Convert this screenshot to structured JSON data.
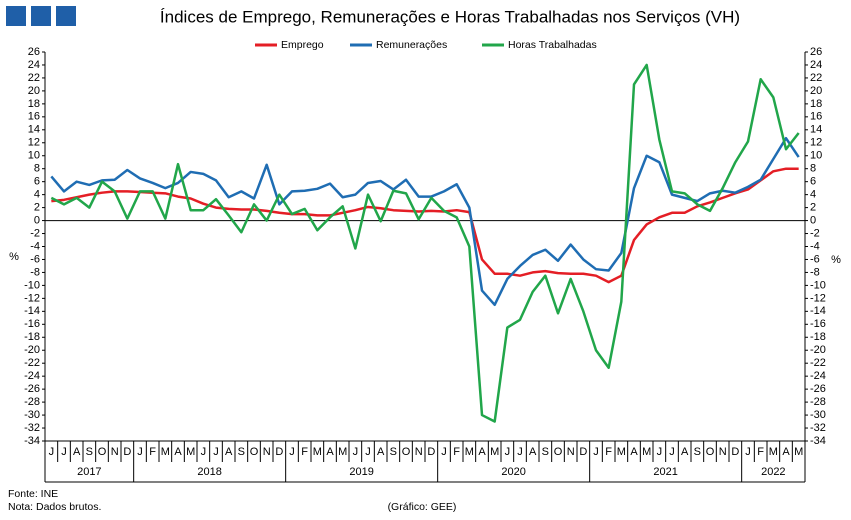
{
  "chart_data": {
    "type": "line",
    "title": "Índices de Emprego, Remunerações e Horas Trabalhadas nos Serviços (VH)",
    "ylabel": "%",
    "categories": [
      "J",
      "J",
      "A",
      "S",
      "O",
      "N",
      "D",
      "J",
      "F",
      "M",
      "A",
      "M",
      "J",
      "J",
      "A",
      "S",
      "O",
      "N",
      "D",
      "J",
      "F",
      "M",
      "A",
      "M",
      "J",
      "J",
      "A",
      "S",
      "O",
      "N",
      "D",
      "J",
      "F",
      "M",
      "A",
      "M",
      "J",
      "J",
      "A",
      "S",
      "O",
      "N",
      "D",
      "J",
      "F",
      "M",
      "A",
      "M",
      "J",
      "J",
      "A",
      "S",
      "O",
      "N",
      "D",
      "J",
      "F",
      "M",
      "A",
      "M"
    ],
    "years": [
      "2017",
      "2018",
      "2019",
      "2020",
      "2021",
      "2022"
    ],
    "series": [
      {
        "name": "Emprego",
        "color": "#e41e25",
        "values": [
          3.0,
          3.2,
          3.6,
          4.0,
          4.3,
          4.5,
          4.5,
          4.4,
          4.3,
          4.2,
          3.7,
          3.4,
          2.6,
          2.0,
          1.8,
          1.7,
          1.7,
          1.5,
          1.2,
          1.0,
          1.0,
          0.8,
          0.8,
          1.2,
          1.6,
          2.1,
          1.9,
          1.6,
          1.5,
          1.4,
          1.5,
          1.4,
          1.6,
          1.3,
          -6.0,
          -8.2,
          -8.2,
          -8.5,
          -8.0,
          -7.8,
          -8.1,
          -8.2,
          -8.2,
          -8.5,
          -9.5,
          -8.5,
          -3.0,
          -0.6,
          0.5,
          1.2,
          1.2,
          2.2,
          2.8,
          3.5,
          4.2,
          4.8,
          6.2,
          7.6,
          8.0,
          8.0
        ]
      },
      {
        "name": "Remunerações",
        "color": "#1f6db3",
        "values": [
          6.8,
          4.5,
          6.0,
          5.5,
          6.2,
          6.3,
          7.8,
          6.5,
          5.8,
          5.0,
          5.8,
          7.5,
          7.2,
          6.2,
          3.6,
          4.5,
          3.4,
          8.6,
          2.5,
          4.5,
          4.6,
          4.9,
          5.7,
          3.6,
          4.0,
          5.8,
          6.1,
          4.8,
          6.3,
          3.7,
          3.7,
          4.5,
          5.6,
          2.0,
          -10.8,
          -13.0,
          -9.0,
          -7.0,
          -5.3,
          -4.5,
          -6.2,
          -3.7,
          -6.0,
          -7.5,
          -7.7,
          -5.0,
          5.0,
          10.0,
          9.0,
          4.0,
          3.5,
          3.0,
          4.2,
          4.6,
          4.3,
          5.2,
          6.3,
          9.5,
          12.7,
          9.8
        ]
      },
      {
        "name": "Horas Trabalhadas",
        "color": "#21a64a",
        "values": [
          3.5,
          2.5,
          3.5,
          2.0,
          6.0,
          4.5,
          0.3,
          4.5,
          4.5,
          0.3,
          8.7,
          1.6,
          1.6,
          3.3,
          0.8,
          -1.8,
          2.5,
          0.0,
          4.0,
          1.0,
          1.8,
          -1.5,
          0.5,
          2.2,
          -4.3,
          4.0,
          -0.1,
          4.6,
          4.2,
          0.2,
          3.5,
          1.5,
          0.5,
          -4.0,
          -30.0,
          -31.0,
          -16.5,
          -15.3,
          -11.0,
          -8.5,
          -14.3,
          -9.0,
          -14.0,
          -20.0,
          -22.7,
          -12.5,
          21.0,
          24.0,
          12.5,
          4.5,
          4.2,
          2.5,
          1.5,
          5.0,
          9.0,
          12.2,
          21.8,
          19.0,
          11.0,
          13.5
        ]
      }
    ],
    "ylim": [
      -34,
      26
    ],
    "yticks": [
      -34,
      -32,
      -30,
      -28,
      -26,
      -24,
      -22,
      -20,
      -18,
      -16,
      -14,
      -12,
      -10,
      -8,
      -6,
      -4,
      -2,
      0,
      2,
      4,
      6,
      8,
      10,
      12,
      14,
      16,
      18,
      20,
      22,
      24,
      26
    ],
    "legend": "top",
    "source": "Fonte: INE",
    "note": "Nota: Dados brutos.",
    "credit": "(Gráfico: GEE)"
  }
}
